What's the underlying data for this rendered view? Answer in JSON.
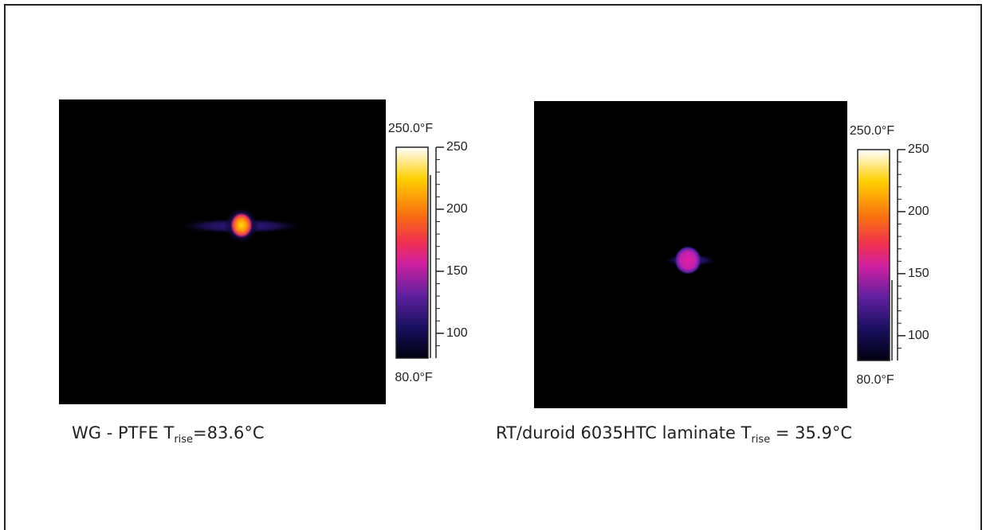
{
  "panels": [
    {
      "caption": {
        "main": "WG - PTFE T",
        "sub": "rise",
        "rest": "=83.6°C"
      },
      "scale_max": {
        "value": 250,
        "label": "250.0°F"
      },
      "scale_min": {
        "value": 80,
        "label": "80.0°F"
      },
      "ticks": [
        250,
        200,
        150,
        100
      ]
    },
    {
      "caption": {
        "main": "RT/duroid 6035HTC laminate T",
        "sub": "rise",
        "rest": " = 35.9°C"
      },
      "scale_max": {
        "value": 250,
        "label": "250.0°F"
      },
      "scale_min": {
        "value": 80,
        "label": "80.0°F"
      },
      "ticks": [
        250,
        200,
        150,
        100
      ]
    }
  ]
}
